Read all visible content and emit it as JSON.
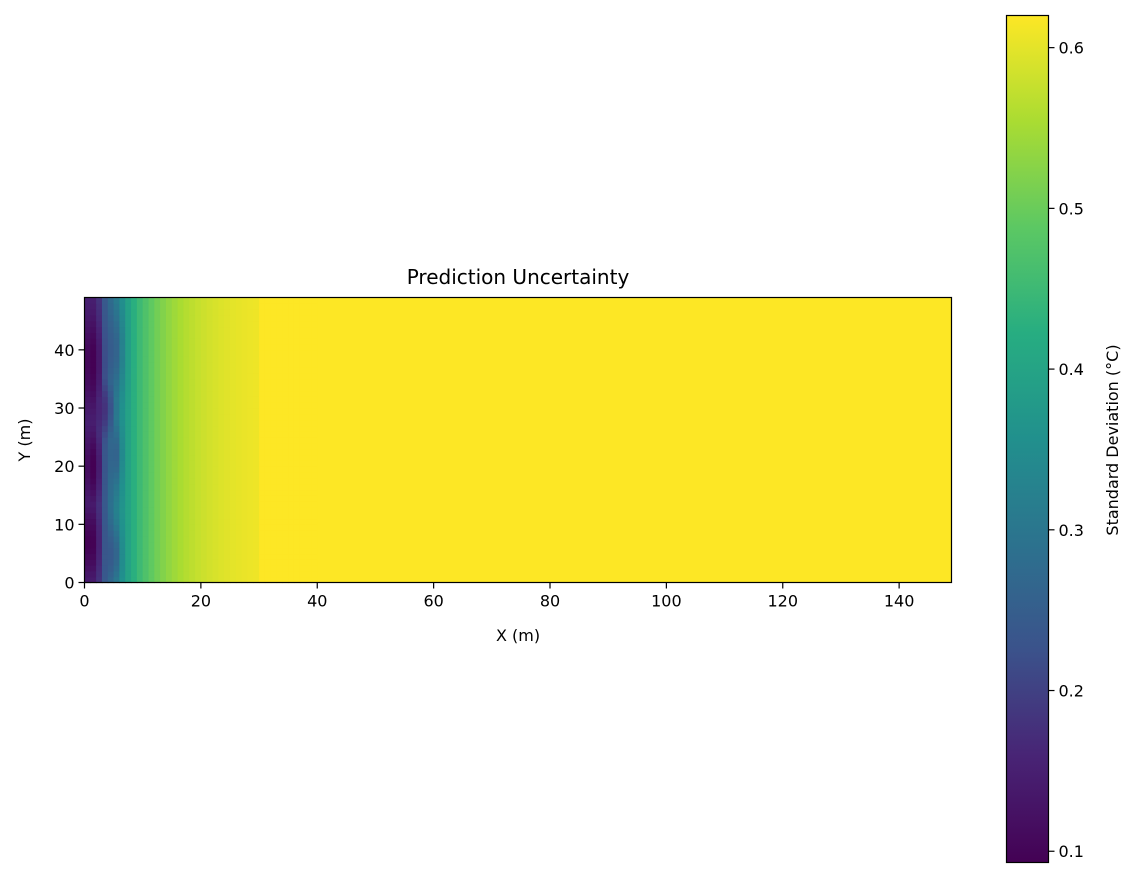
{
  "chart_data": {
    "type": "heatmap",
    "title": "Prediction Uncertainty",
    "xlabel": "X (m)",
    "ylabel": "Y (m)",
    "xlim": [
      0,
      149
    ],
    "ylim": [
      0,
      49
    ],
    "x_ticks": [
      0,
      20,
      40,
      60,
      80,
      100,
      120,
      140
    ],
    "y_ticks": [
      0,
      10,
      20,
      30,
      40
    ],
    "grid": false,
    "colormap": "viridis",
    "colorbar": {
      "label": "Standard Deviation (°C)",
      "range": [
        0.093,
        0.62
      ],
      "ticks": [
        0.1,
        0.2,
        0.3,
        0.4,
        0.5,
        0.6
      ]
    },
    "field_description": {
      "min_value": 0.093,
      "max_value": 0.62,
      "saturation_x": 30
    }
  }
}
